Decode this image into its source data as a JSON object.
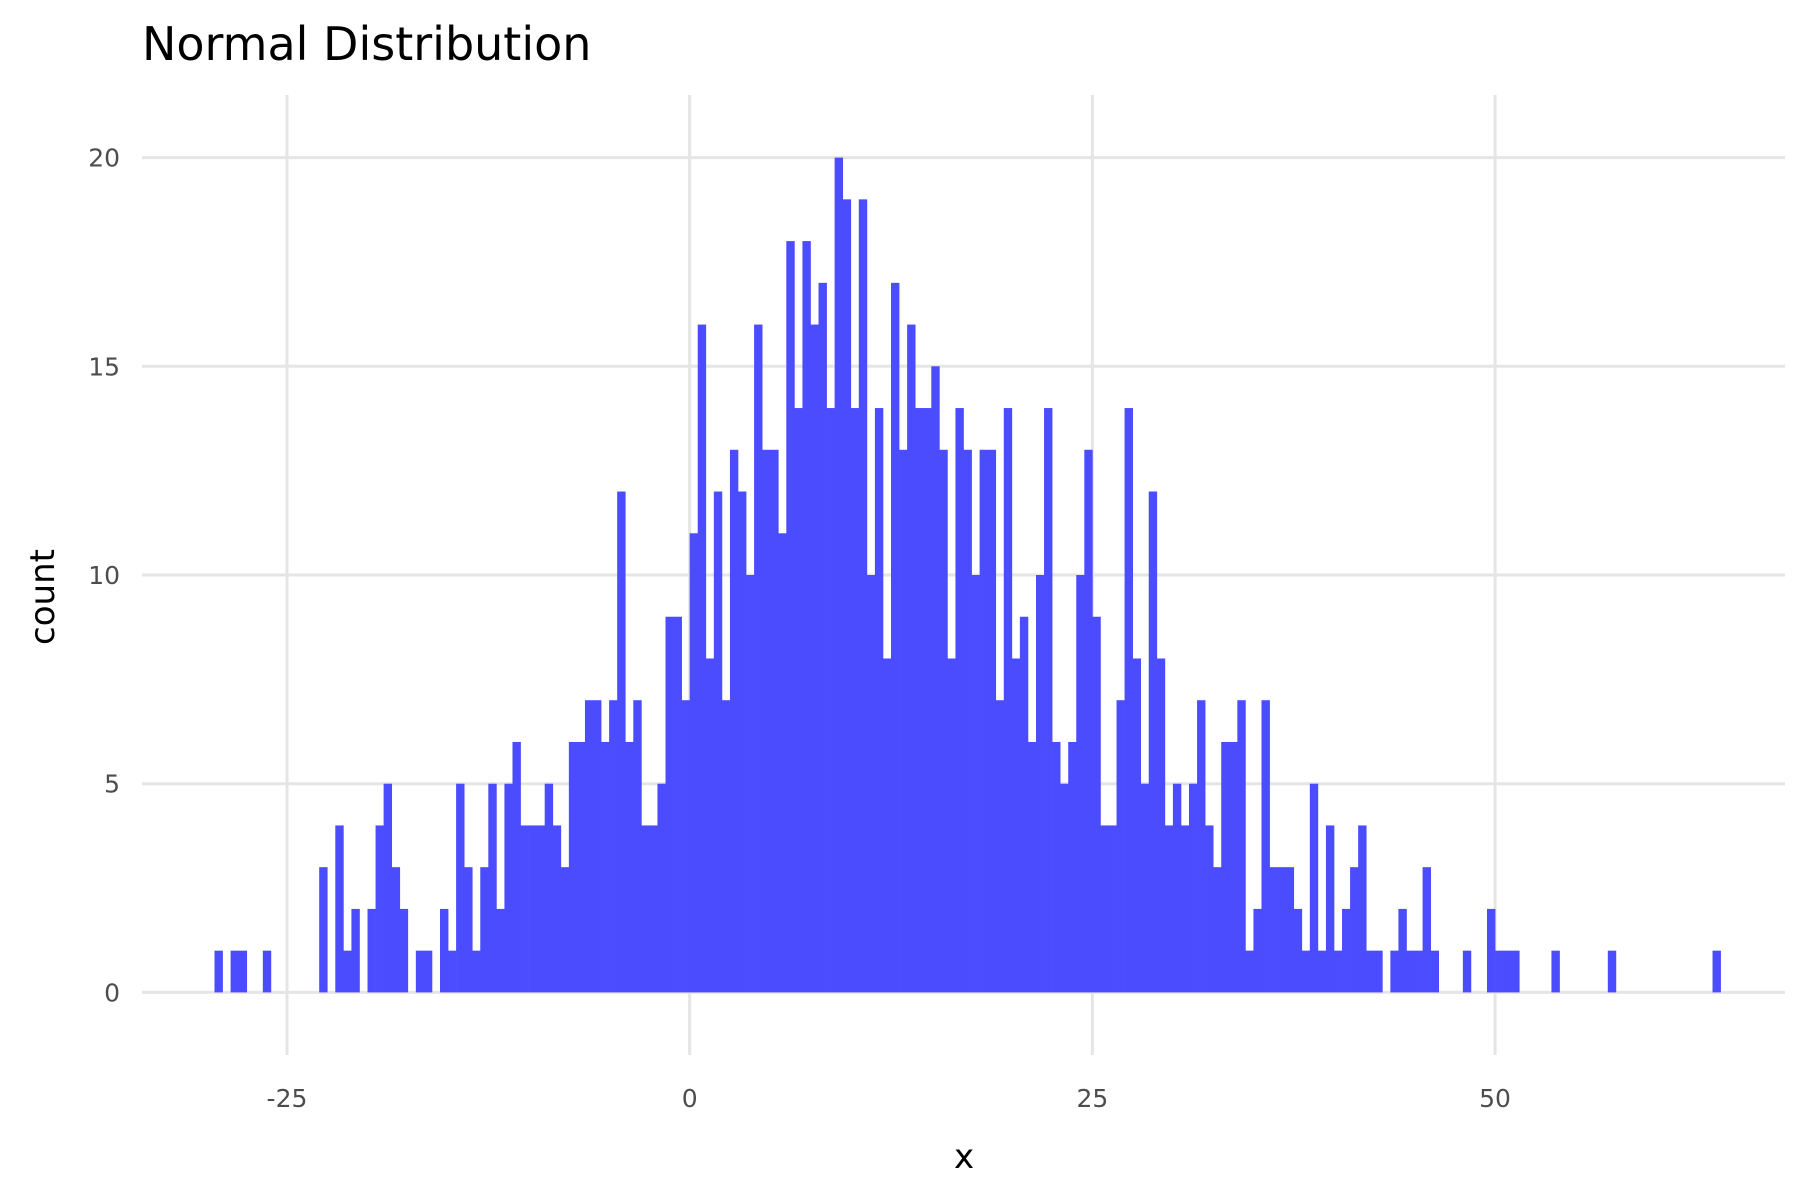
{
  "chart_data": {
    "type": "bar",
    "title": "Normal Distribution",
    "xlabel": "x",
    "ylabel": "count",
    "xlim": [
      -34,
      68
    ],
    "ylim": [
      -1.5,
      21.5
    ],
    "x_ticks": [
      -25,
      0,
      25,
      50
    ],
    "y_ticks": [
      0,
      5,
      10,
      15,
      20
    ],
    "grid": true,
    "bar_color": "#4c4cff",
    "bin_width": 0.5,
    "bins": [
      {
        "x": -29.25,
        "count": 1
      },
      {
        "x": -28.25,
        "count": 1
      },
      {
        "x": -27.75,
        "count": 1
      },
      {
        "x": -26.25,
        "count": 1
      },
      {
        "x": -22.75,
        "count": 3
      },
      {
        "x": -21.75,
        "count": 4
      },
      {
        "x": -21.25,
        "count": 1
      },
      {
        "x": -20.75,
        "count": 2
      },
      {
        "x": -19.75,
        "count": 2
      },
      {
        "x": -19.25,
        "count": 4
      },
      {
        "x": -18.75,
        "count": 5
      },
      {
        "x": -18.25,
        "count": 3
      },
      {
        "x": -17.75,
        "count": 2
      },
      {
        "x": -16.75,
        "count": 1
      },
      {
        "x": -16.25,
        "count": 1
      },
      {
        "x": -15.25,
        "count": 2
      },
      {
        "x": -14.75,
        "count": 1
      },
      {
        "x": -14.25,
        "count": 5
      },
      {
        "x": -13.75,
        "count": 3
      },
      {
        "x": -13.25,
        "count": 1
      },
      {
        "x": -12.75,
        "count": 3
      },
      {
        "x": -12.25,
        "count": 5
      },
      {
        "x": -11.75,
        "count": 2
      },
      {
        "x": -11.25,
        "count": 5
      },
      {
        "x": -10.75,
        "count": 6
      },
      {
        "x": -10.25,
        "count": 4
      },
      {
        "x": -9.75,
        "count": 4
      },
      {
        "x": -9.25,
        "count": 4
      },
      {
        "x": -8.75,
        "count": 5
      },
      {
        "x": -8.25,
        "count": 4
      },
      {
        "x": -7.75,
        "count": 3
      },
      {
        "x": -7.25,
        "count": 6
      },
      {
        "x": -6.75,
        "count": 6
      },
      {
        "x": -6.25,
        "count": 7
      },
      {
        "x": -5.75,
        "count": 7
      },
      {
        "x": -5.25,
        "count": 6
      },
      {
        "x": -4.75,
        "count": 7
      },
      {
        "x": -4.25,
        "count": 12
      },
      {
        "x": -3.75,
        "count": 6
      },
      {
        "x": -3.25,
        "count": 7
      },
      {
        "x": -2.75,
        "count": 4
      },
      {
        "x": -2.25,
        "count": 4
      },
      {
        "x": -1.75,
        "count": 5
      },
      {
        "x": -1.25,
        "count": 9
      },
      {
        "x": -0.75,
        "count": 9
      },
      {
        "x": -0.25,
        "count": 7
      },
      {
        "x": 0.25,
        "count": 11
      },
      {
        "x": 0.75,
        "count": 16
      },
      {
        "x": 1.25,
        "count": 8
      },
      {
        "x": 1.75,
        "count": 12
      },
      {
        "x": 2.25,
        "count": 7
      },
      {
        "x": 2.75,
        "count": 13
      },
      {
        "x": 3.25,
        "count": 12
      },
      {
        "x": 3.75,
        "count": 10
      },
      {
        "x": 4.25,
        "count": 16
      },
      {
        "x": 4.75,
        "count": 13
      },
      {
        "x": 5.25,
        "count": 13
      },
      {
        "x": 5.75,
        "count": 11
      },
      {
        "x": 6.25,
        "count": 18
      },
      {
        "x": 6.75,
        "count": 14
      },
      {
        "x": 7.25,
        "count": 18
      },
      {
        "x": 7.75,
        "count": 16
      },
      {
        "x": 8.25,
        "count": 17
      },
      {
        "x": 8.75,
        "count": 14
      },
      {
        "x": 9.25,
        "count": 20
      },
      {
        "x": 9.75,
        "count": 19
      },
      {
        "x": 10.25,
        "count": 14
      },
      {
        "x": 10.75,
        "count": 19
      },
      {
        "x": 11.25,
        "count": 10
      },
      {
        "x": 11.75,
        "count": 14
      },
      {
        "x": 12.25,
        "count": 8
      },
      {
        "x": 12.75,
        "count": 17
      },
      {
        "x": 13.25,
        "count": 13
      },
      {
        "x": 13.75,
        "count": 16
      },
      {
        "x": 14.25,
        "count": 14
      },
      {
        "x": 14.75,
        "count": 14
      },
      {
        "x": 15.25,
        "count": 15
      },
      {
        "x": 15.75,
        "count": 13
      },
      {
        "x": 16.25,
        "count": 8
      },
      {
        "x": 16.75,
        "count": 14
      },
      {
        "x": 17.25,
        "count": 13
      },
      {
        "x": 17.75,
        "count": 10
      },
      {
        "x": 18.25,
        "count": 13
      },
      {
        "x": 18.75,
        "count": 13
      },
      {
        "x": 19.25,
        "count": 7
      },
      {
        "x": 19.75,
        "count": 14
      },
      {
        "x": 20.25,
        "count": 8
      },
      {
        "x": 20.75,
        "count": 9
      },
      {
        "x": 21.25,
        "count": 6
      },
      {
        "x": 21.75,
        "count": 10
      },
      {
        "x": 22.25,
        "count": 14
      },
      {
        "x": 22.75,
        "count": 6
      },
      {
        "x": 23.25,
        "count": 5
      },
      {
        "x": 23.75,
        "count": 6
      },
      {
        "x": 24.25,
        "count": 10
      },
      {
        "x": 24.75,
        "count": 13
      },
      {
        "x": 25.25,
        "count": 9
      },
      {
        "x": 25.75,
        "count": 4
      },
      {
        "x": 26.25,
        "count": 4
      },
      {
        "x": 26.75,
        "count": 7
      },
      {
        "x": 27.25,
        "count": 14
      },
      {
        "x": 27.75,
        "count": 8
      },
      {
        "x": 28.25,
        "count": 5
      },
      {
        "x": 28.75,
        "count": 12
      },
      {
        "x": 29.25,
        "count": 8
      },
      {
        "x": 29.75,
        "count": 4
      },
      {
        "x": 30.25,
        "count": 5
      },
      {
        "x": 30.75,
        "count": 4
      },
      {
        "x": 31.25,
        "count": 5
      },
      {
        "x": 31.75,
        "count": 7
      },
      {
        "x": 32.25,
        "count": 4
      },
      {
        "x": 32.75,
        "count": 3
      },
      {
        "x": 33.25,
        "count": 6
      },
      {
        "x": 33.75,
        "count": 6
      },
      {
        "x": 34.25,
        "count": 7
      },
      {
        "x": 34.75,
        "count": 1
      },
      {
        "x": 35.25,
        "count": 2
      },
      {
        "x": 35.75,
        "count": 7
      },
      {
        "x": 36.25,
        "count": 3
      },
      {
        "x": 36.75,
        "count": 3
      },
      {
        "x": 37.25,
        "count": 3
      },
      {
        "x": 37.75,
        "count": 2
      },
      {
        "x": 38.25,
        "count": 1
      },
      {
        "x": 38.75,
        "count": 5
      },
      {
        "x": 39.25,
        "count": 1
      },
      {
        "x": 39.75,
        "count": 4
      },
      {
        "x": 40.25,
        "count": 1
      },
      {
        "x": 40.75,
        "count": 2
      },
      {
        "x": 41.25,
        "count": 3
      },
      {
        "x": 41.75,
        "count": 4
      },
      {
        "x": 42.25,
        "count": 1
      },
      {
        "x": 42.75,
        "count": 1
      },
      {
        "x": 43.75,
        "count": 1
      },
      {
        "x": 44.25,
        "count": 2
      },
      {
        "x": 44.75,
        "count": 1
      },
      {
        "x": 45.25,
        "count": 1
      },
      {
        "x": 45.75,
        "count": 3
      },
      {
        "x": 46.25,
        "count": 1
      },
      {
        "x": 48.25,
        "count": 1
      },
      {
        "x": 49.75,
        "count": 2
      },
      {
        "x": 50.25,
        "count": 1
      },
      {
        "x": 50.75,
        "count": 1
      },
      {
        "x": 51.25,
        "count": 1
      },
      {
        "x": 53.75,
        "count": 1
      },
      {
        "x": 57.25,
        "count": 1
      },
      {
        "x": 63.75,
        "count": 1
      }
    ]
  }
}
